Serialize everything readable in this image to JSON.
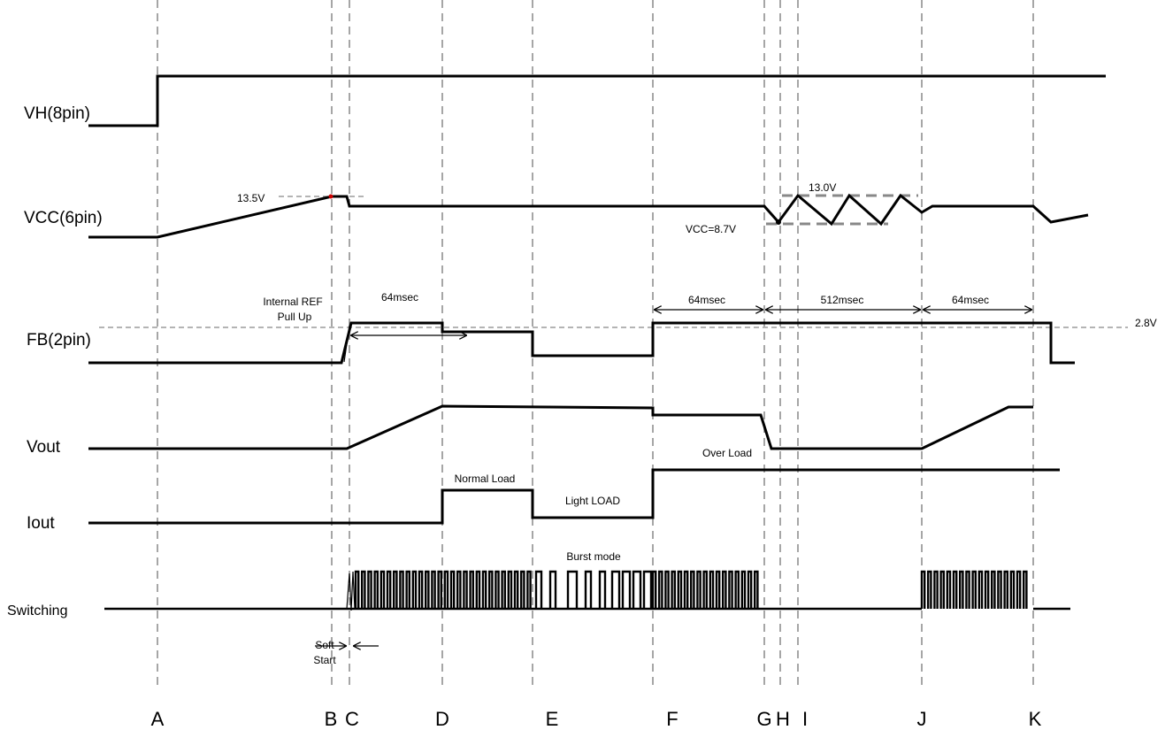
{
  "signals": {
    "vh": "VH(8pin)",
    "vcc": "VCC(6pin)",
    "fb": "FB(2pin)",
    "vout": "Vout",
    "iout": "Iout",
    "switching": "Switching"
  },
  "phases": [
    "A",
    "B",
    "C",
    "D",
    "E",
    "F",
    "G",
    "H",
    "I",
    "J",
    "K"
  ],
  "annotations": {
    "vcc_start": "13.5V",
    "vcc_hi": "13.0V",
    "vcc_lo": "VCC=8.7V",
    "internal_ref_1": "Internal REF",
    "internal_ref_2": "Pull Up",
    "t1": "64msec",
    "t2": "64msec",
    "t3": "512msec",
    "t4": "64msec",
    "fb_level": "2.8V",
    "normal_load": "Normal Load",
    "light_load": "Light LOAD",
    "over_load": "Over Load",
    "burst_mode": "Burst mode",
    "soft_1": "Soft",
    "soft_2": "Start"
  }
}
